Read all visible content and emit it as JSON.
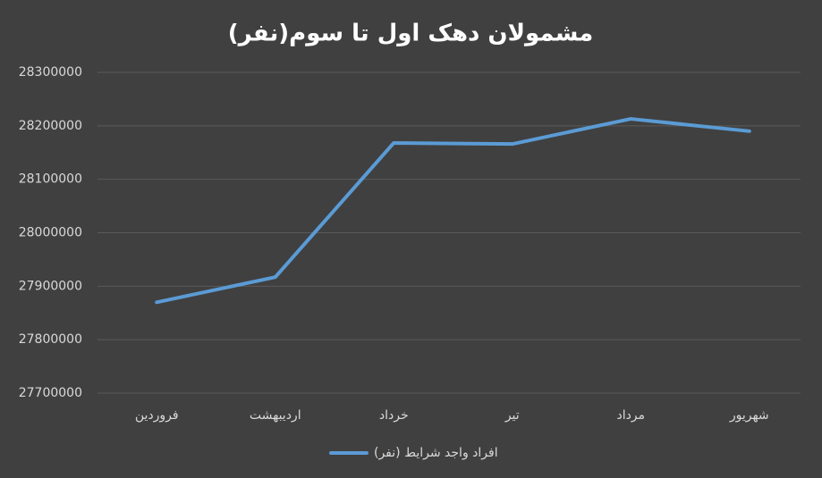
{
  "chart_data": {
    "type": "line",
    "title": "مشمولان دهک اول تا سوم(نفر)",
    "categories": [
      "فروردین",
      "اردیبهشت",
      "خرداد",
      "تیر",
      "مرداد",
      "شهریور"
    ],
    "series": [
      {
        "name": "افراد واجد شرایط (نفر)",
        "color": "#5b9bd5",
        "values": [
          27870000,
          27917000,
          28168000,
          28166000,
          28213000,
          28190000
        ]
      }
    ],
    "ylim": [
      27700000,
      28300000
    ],
    "yticks": [
      27700000,
      27800000,
      27900000,
      28000000,
      28100000,
      28200000,
      28300000
    ],
    "grid": true,
    "legend": "bottom"
  }
}
